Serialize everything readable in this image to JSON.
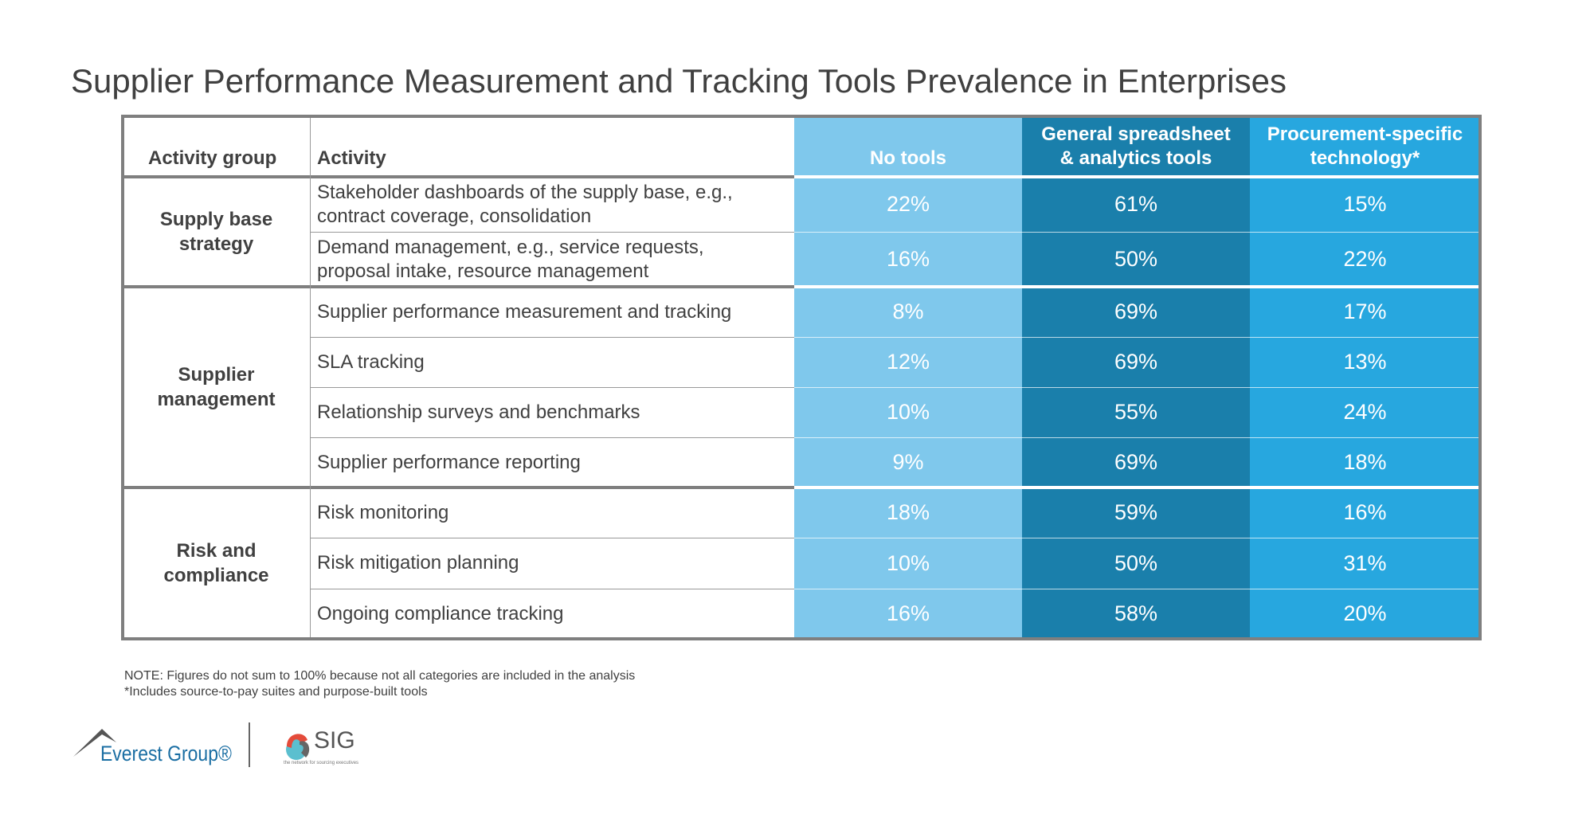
{
  "title": "Supplier Performance Measurement and Tracking Tools Prevalence in Enterprises",
  "table": {
    "headers": [
      "Activity group",
      "Activity",
      "No tools",
      "General spreadsheet & analytics tools",
      "Procurement-specific technology*"
    ],
    "column_colors": [
      "#7fc8ec",
      "#1a7fab",
      "#27a7df"
    ],
    "groups": [
      {
        "name": "Supply base strategy",
        "rows": [
          {
            "activity": "Stakeholder dashboards of the supply base, e.g., contract coverage, consolidation",
            "values": [
              "22%",
              "61%",
              "15%"
            ]
          },
          {
            "activity": "Demand management, e.g., service requests, proposal intake, resource management",
            "values": [
              "16%",
              "50%",
              "22%"
            ]
          }
        ]
      },
      {
        "name": "Supplier management",
        "rows": [
          {
            "activity": "Supplier performance measurement and tracking",
            "values": [
              "8%",
              "69%",
              "17%"
            ]
          },
          {
            "activity": "SLA tracking",
            "values": [
              "12%",
              "69%",
              "13%"
            ]
          },
          {
            "activity": "Relationship surveys and benchmarks",
            "values": [
              "10%",
              "55%",
              "24%"
            ]
          },
          {
            "activity": "Supplier performance reporting",
            "values": [
              "9%",
              "69%",
              "18%"
            ]
          }
        ]
      },
      {
        "name": "Risk and compliance",
        "rows": [
          {
            "activity": "Risk monitoring",
            "values": [
              "18%",
              "59%",
              "16%"
            ]
          },
          {
            "activity": "Risk mitigation planning",
            "values": [
              "10%",
              "50%",
              "31%"
            ]
          },
          {
            "activity": "Ongoing compliance tracking",
            "values": [
              "16%",
              "58%",
              "20%"
            ]
          }
        ]
      }
    ]
  },
  "notes": [
    "NOTE: Figures do not sum to 100% because not all categories are included in the analysis",
    "*Includes source-to-pay suites and purpose-built tools"
  ],
  "logos": {
    "everest": "Everest Group®",
    "sig": "SIG",
    "sig_tagline": "the network for sourcing executives"
  }
}
